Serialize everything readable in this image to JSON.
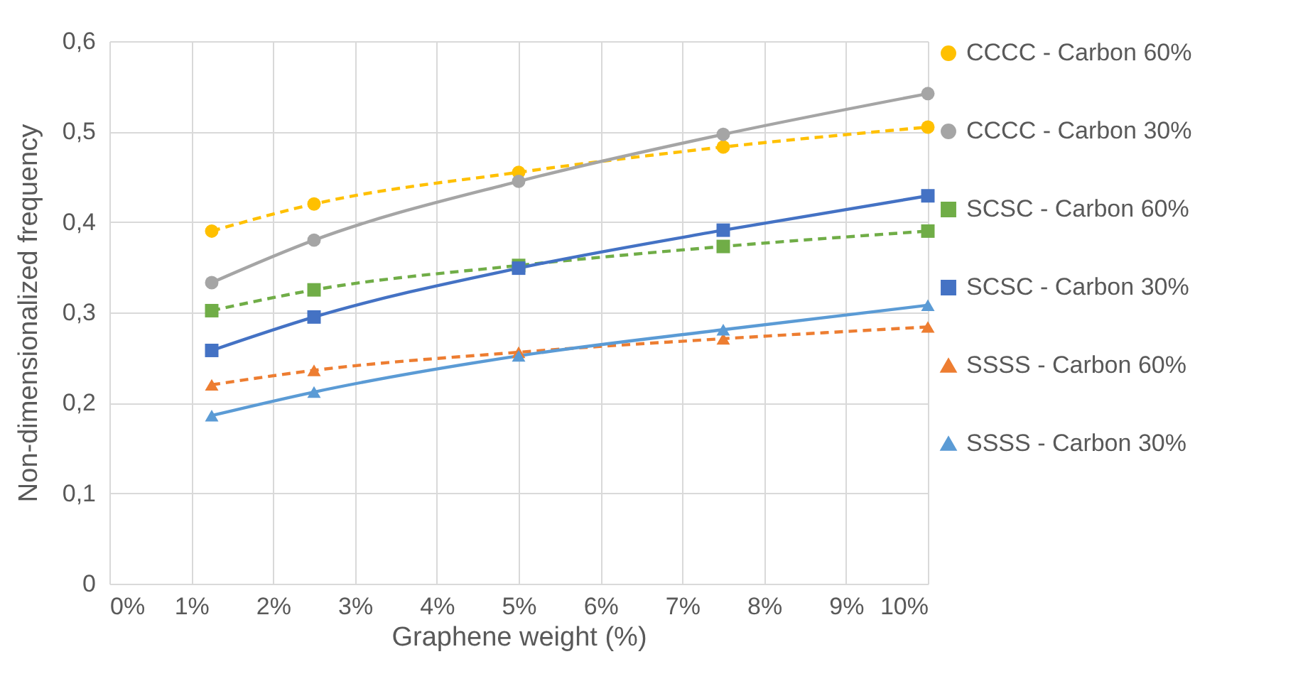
{
  "chart_data": {
    "type": "line",
    "xlabel": "Graphene weight (%)",
    "ylabel": "Non-dimensionalized frequency",
    "x": [
      1.25,
      2.5,
      5,
      7.5,
      10
    ],
    "series": [
      {
        "name": "CCCC - Carbon 60%",
        "color": "#ffc000",
        "marker": "circle",
        "line_style": "dashed",
        "values": [
          0.39,
          0.42,
          0.455,
          0.483,
          0.505
        ]
      },
      {
        "name": "CCCC - Carbon 30%",
        "color": "#a5a5a5",
        "marker": "circle",
        "line_style": "solid",
        "values": [
          0.333,
          0.38,
          0.445,
          0.497,
          0.542
        ]
      },
      {
        "name": "SCSC - Carbon 60%",
        "color": "#70ad47",
        "marker": "square",
        "line_style": "dashed",
        "values": [
          0.302,
          0.325,
          0.352,
          0.373,
          0.39
        ]
      },
      {
        "name": "SCSC - Carbon 30%",
        "color": "#4472c4",
        "marker": "square",
        "line_style": "solid",
        "values": [
          0.258,
          0.295,
          0.349,
          0.391,
          0.429
        ]
      },
      {
        "name": "SSSS - Carbon 60%",
        "color": "#ed7d31",
        "marker": "triangle",
        "line_style": "dashed",
        "values": [
          0.22,
          0.236,
          0.256,
          0.271,
          0.284
        ]
      },
      {
        "name": "SSSS - Carbon 30%",
        "color": "#5b9bd5",
        "marker": "triangle",
        "line_style": "solid",
        "values": [
          0.186,
          0.212,
          0.252,
          0.281,
          0.308
        ]
      }
    ],
    "xlim": [
      0,
      10
    ],
    "xticks": [
      {
        "value": 0,
        "label": "0%"
      },
      {
        "value": 1,
        "label": "1%"
      },
      {
        "value": 2,
        "label": "2%"
      },
      {
        "value": 3,
        "label": "3%"
      },
      {
        "value": 4,
        "label": "4%"
      },
      {
        "value": 5,
        "label": "5%"
      },
      {
        "value": 6,
        "label": "6%"
      },
      {
        "value": 7,
        "label": "7%"
      },
      {
        "value": 8,
        "label": "8%"
      },
      {
        "value": 9,
        "label": "9%"
      },
      {
        "value": 10,
        "label": "10%"
      }
    ],
    "ylim": [
      0,
      0.6
    ],
    "yticks": [
      0,
      {
        "value": 0.1,
        "label": "0,1"
      },
      {
        "value": 0.2,
        "label": "0,2"
      },
      {
        "value": 0.3,
        "label": "0,3"
      },
      {
        "value": 0.4,
        "label": "0,4"
      },
      {
        "value": 0.5,
        "label": "0,5"
      },
      {
        "value": 0.6,
        "label": "0,6"
      }
    ],
    "grid": true,
    "legend": "right"
  }
}
